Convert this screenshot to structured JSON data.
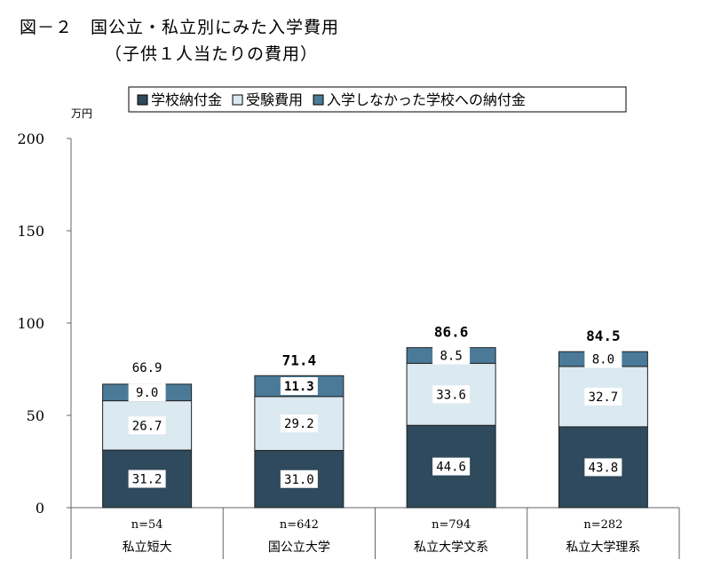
{
  "title_line1": "図－２　国公立・私立別にみた入学費用",
  "title_line2": "（子供１人当たりの費用）",
  "chart_data": {
    "type": "bar",
    "stacked": true,
    "unit_label": "万円",
    "ylim": [
      0,
      200
    ],
    "yticks": [
      0,
      50,
      100,
      150,
      200
    ],
    "categories": [
      "私立短大",
      "国公立大学",
      "私立大学文系",
      "私立大学理系"
    ],
    "sample_sizes": [
      "n=54",
      "n=642",
      "n=794",
      "n=282"
    ],
    "series": [
      {
        "name": "学校納付金",
        "values": [
          31.2,
          31.0,
          44.6,
          43.8
        ],
        "labels": [
          "31.2",
          "31.0",
          "44.6",
          "43.8"
        ],
        "color": "#2e4a5c"
      },
      {
        "name": "受験費用",
        "values": [
          26.7,
          29.2,
          33.6,
          32.7
        ],
        "labels": [
          "26.7",
          "29.2",
          "33.6",
          "32.7"
        ],
        "color": "#dbe9f1"
      },
      {
        "name": "入学しなかった学校への納付金",
        "values": [
          9.0,
          11.3,
          8.5,
          8.0
        ],
        "labels": [
          "9.0",
          "11.3",
          "8.5",
          "8.0"
        ],
        "color": "#4a7a98"
      }
    ],
    "totals": [
      "66.9",
      "71.4",
      "86.6",
      "84.5"
    ],
    "legend_position": "top"
  }
}
